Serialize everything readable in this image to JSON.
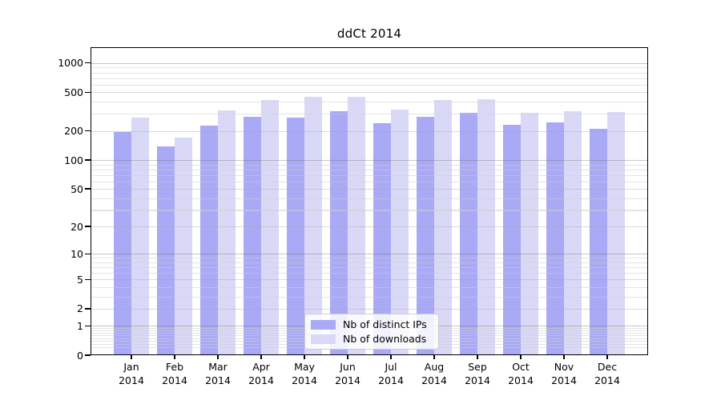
{
  "title": "ddCt 2014",
  "colors": {
    "ips": "#a9a9f5",
    "downloads": "#d9d9f7",
    "axis": "#000000",
    "grid_major": "#c6c6c6",
    "grid_minor": "#e6e6e6",
    "legend_border": "#cccccc"
  },
  "chart_data": {
    "type": "bar",
    "title": "ddCt 2014",
    "categories": [
      "Jan",
      "Feb",
      "Mar",
      "Apr",
      "May",
      "Jun",
      "Jul",
      "Aug",
      "Sep",
      "Oct",
      "Nov",
      "Dec"
    ],
    "year": "2014",
    "series": [
      {
        "key": "ips",
        "name": "Nb of distinct IPs",
        "values": [
          195,
          139,
          226,
          280,
          273,
          320,
          242,
          279,
          310,
          232,
          244,
          211
        ]
      },
      {
        "key": "downloads",
        "name": "Nb of downloads",
        "values": [
          275,
          171,
          324,
          417,
          450,
          448,
          332,
          420,
          425,
          308,
          320,
          314
        ]
      }
    ],
    "y_scale": "log1p",
    "y_ticks": [
      0,
      1,
      2,
      5,
      10,
      20,
      50,
      100,
      200,
      500,
      1000
    ],
    "ylim": [
      0,
      1455
    ],
    "xlabel": "",
    "ylabel": "",
    "grid": "on",
    "legend_position": "lower center"
  }
}
